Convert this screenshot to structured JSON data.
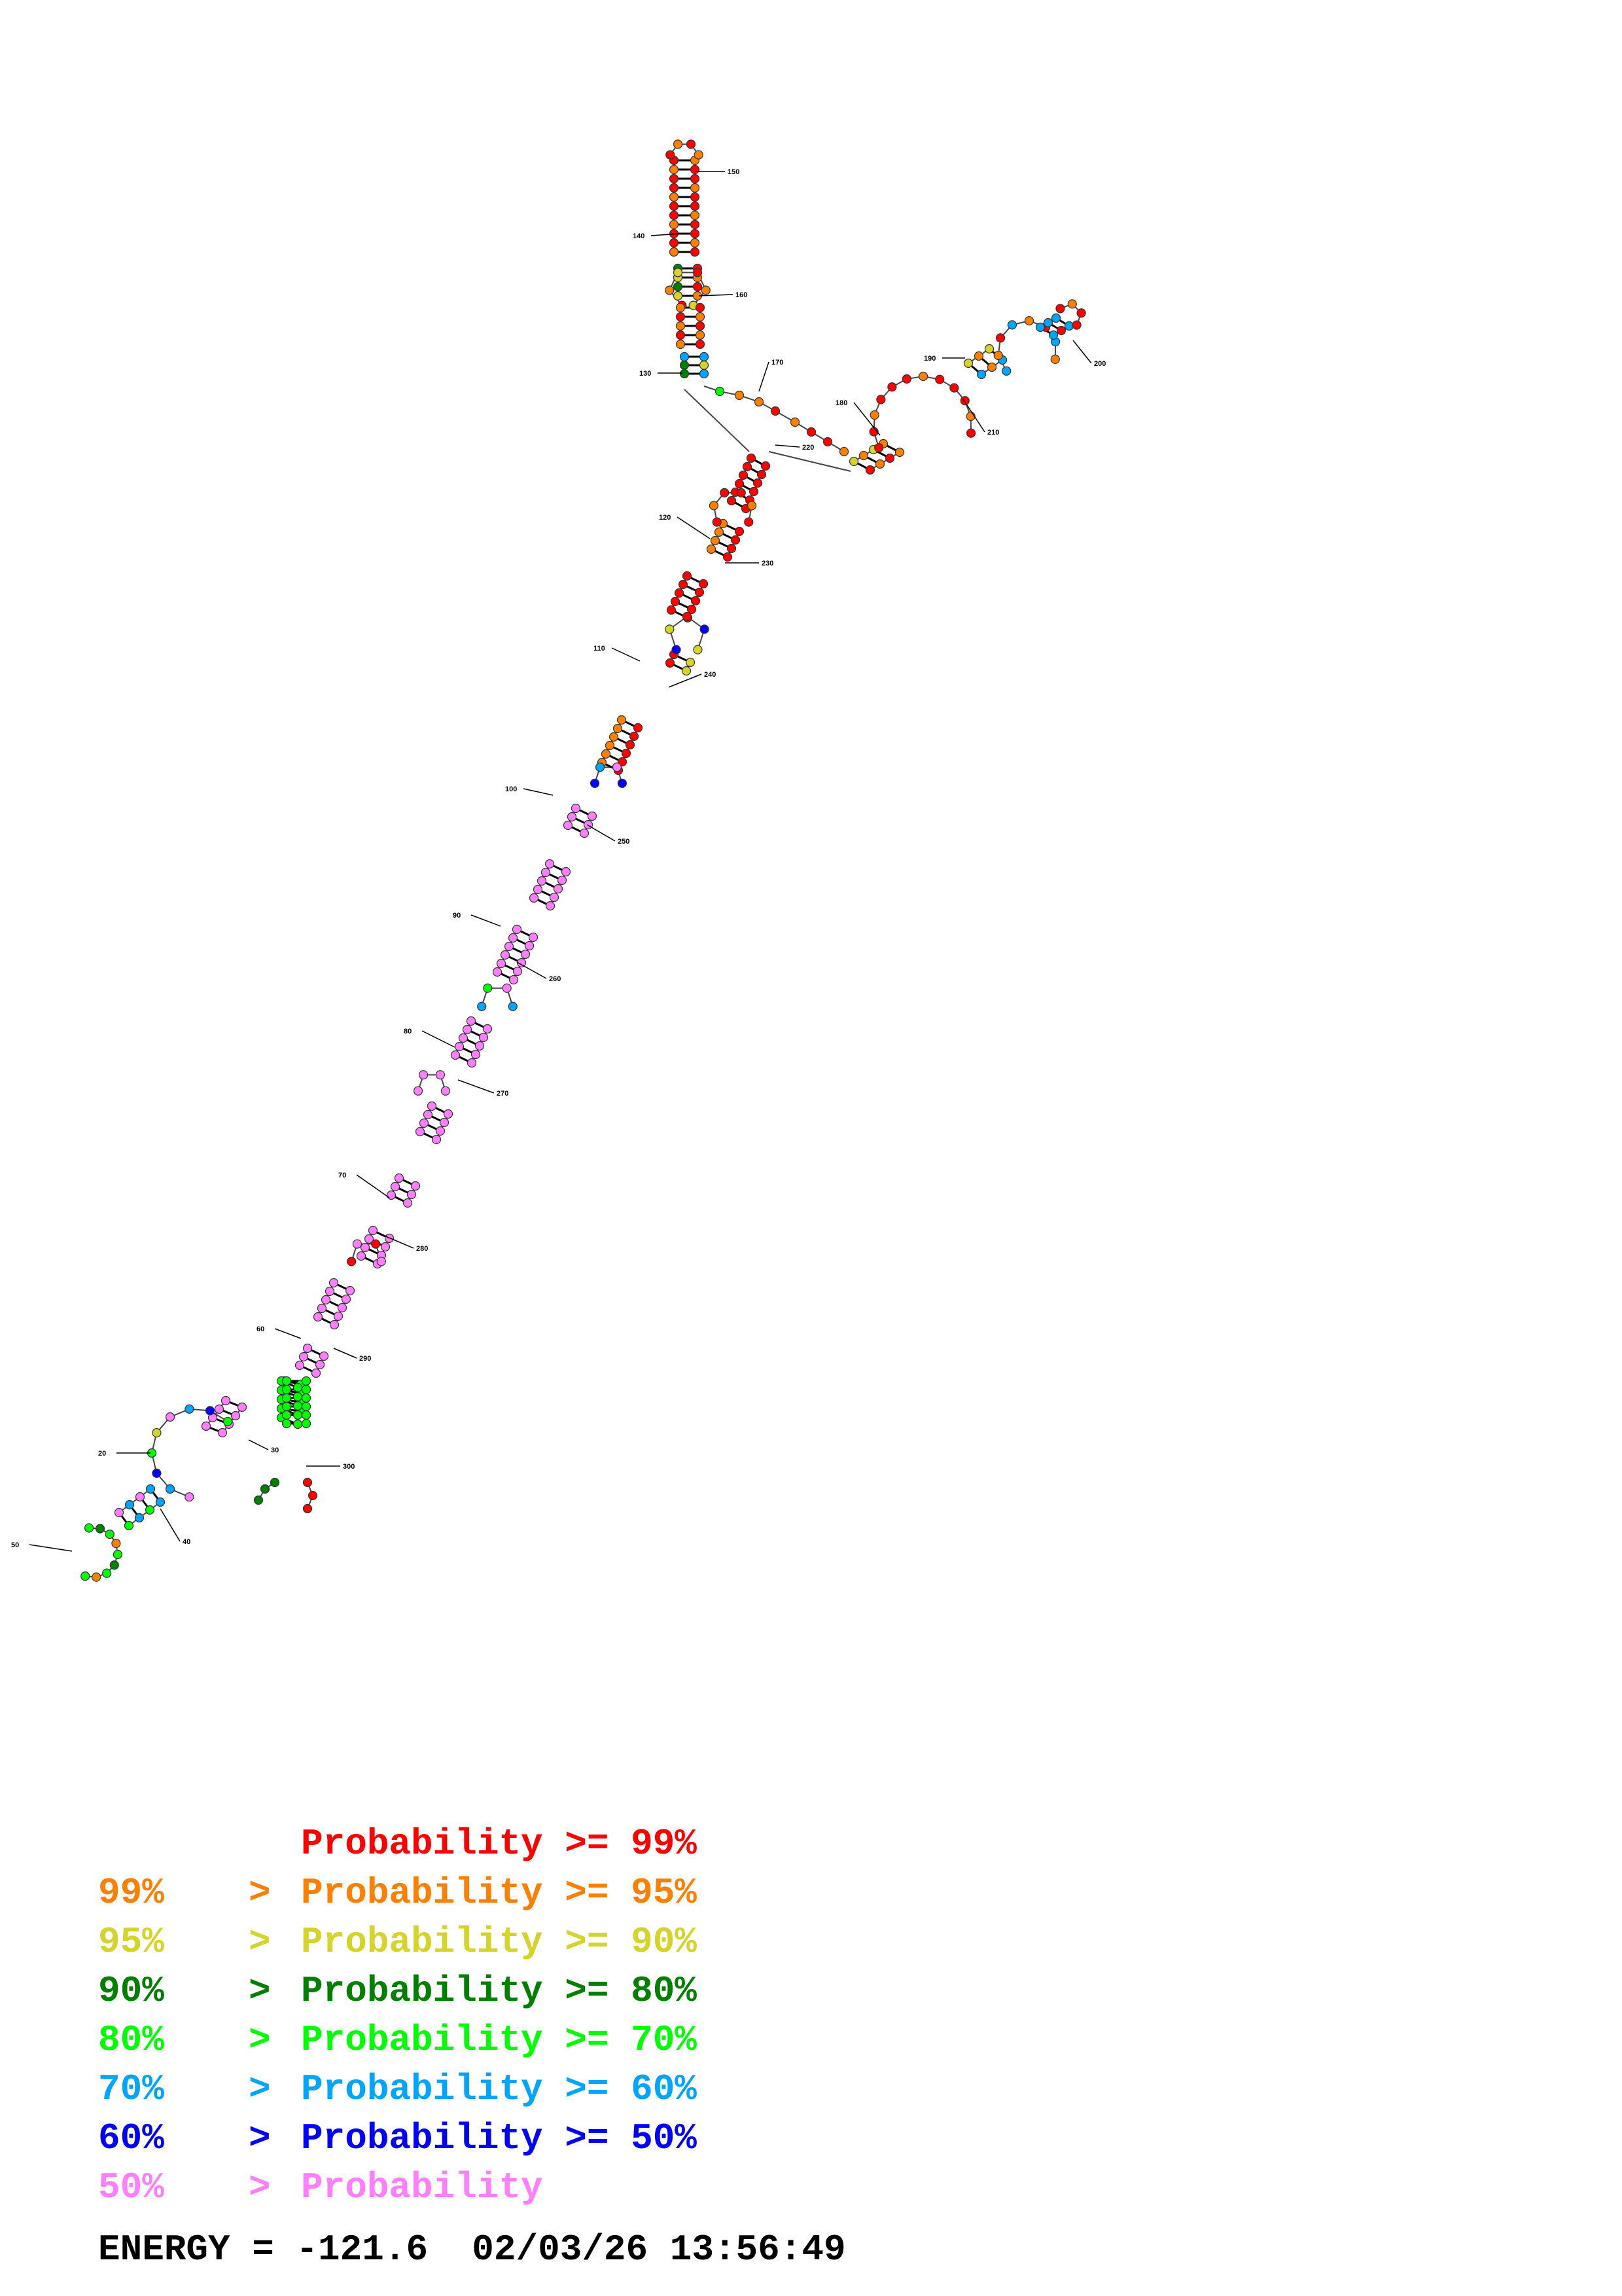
{
  "structure": {
    "position_labels": [
      "20",
      "30",
      "40",
      "50",
      "60",
      "70",
      "80",
      "90",
      "100",
      "110",
      "120",
      "130",
      "140",
      "150",
      "160",
      "170",
      "180",
      "190",
      "200",
      "210",
      "220",
      "230",
      "240",
      "250",
      "260",
      "270",
      "280",
      "290",
      "300"
    ]
  },
  "colors": {
    "p99": "#ff0000",
    "p95": "#ff7f00",
    "p90": "#d4d42a",
    "p80": "#007f00",
    "p70": "#00ff00",
    "p60": "#00a5ff",
    "p50": "#0000ff",
    "plt50": "#ff7fff"
  },
  "legend": [
    {
      "low": "",
      "cmp": "",
      "label": "Probability >= 99%",
      "color_key": "p99"
    },
    {
      "low": "99%",
      "cmp": ">",
      "label": "Probability >= 95%",
      "color_key": "p95"
    },
    {
      "low": "95%",
      "cmp": ">",
      "label": "Probability >= 90%",
      "color_key": "p90"
    },
    {
      "low": "90%",
      "cmp": ">",
      "label": "Probability >= 80%",
      "color_key": "p80"
    },
    {
      "low": "80%",
      "cmp": ">",
      "label": "Probability >= 70%",
      "color_key": "p70"
    },
    {
      "low": "70%",
      "cmp": ">",
      "label": "Probability >= 60%",
      "color_key": "p60"
    },
    {
      "low": "60%",
      "cmp": ">",
      "label": "Probability >= 50%",
      "color_key": "p50"
    },
    {
      "low": "50%",
      "cmp": ">",
      "label": "Probability",
      "color_key": "plt50"
    }
  ],
  "footer": {
    "energy": "ENERGY = -121.6  02/03/26 13:56:49"
  }
}
